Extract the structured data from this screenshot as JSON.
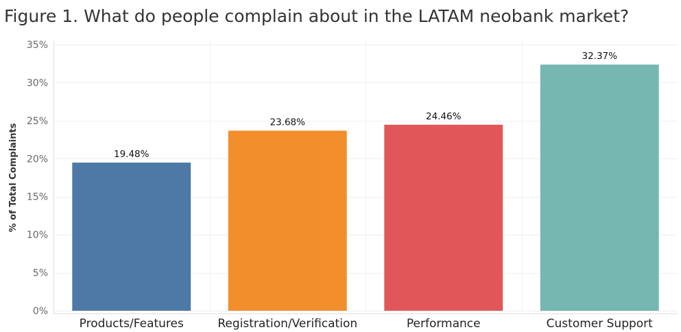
{
  "chart_data": {
    "type": "bar",
    "title": "Figure 1. What do people complain about in the LATAM neobank market?",
    "xlabel": "",
    "ylabel": "% of Total Complaints",
    "ylim": [
      0,
      35
    ],
    "yticks": [
      "0%",
      "5%",
      "10%",
      "15%",
      "20%",
      "25%",
      "30%",
      "35%"
    ],
    "ytick_values": [
      0,
      5,
      10,
      15,
      20,
      25,
      30,
      35
    ],
    "categories": [
      "Products/Features",
      "Registration/Verification",
      "Performance",
      "Customer Support"
    ],
    "values": [
      19.48,
      23.68,
      24.46,
      32.37
    ],
    "data_labels": [
      "19.48%",
      "23.68%",
      "24.46%",
      "32.37%"
    ],
    "colors": [
      "#4e79a7",
      "#f28e2b",
      "#e15759",
      "#76b7b2"
    ],
    "grid": true,
    "legend": "none"
  }
}
